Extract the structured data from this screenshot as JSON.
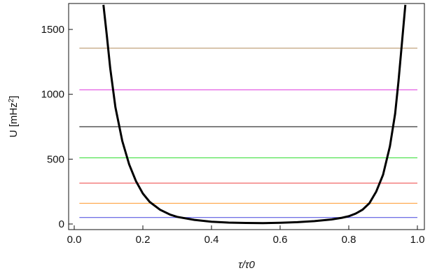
{
  "chart_data": {
    "type": "line",
    "xlabel": "τ/τ0",
    "ylabel_main": "U [mHz",
    "ylabel_sup": "2",
    "ylabel_tail": "]",
    "xlim": [
      0.0,
      1.0
    ],
    "ylim": [
      0,
      1700
    ],
    "xticks": [
      0.0,
      0.2,
      0.4,
      0.6,
      0.8,
      1.0
    ],
    "xtick_labels": [
      "0.0",
      "0.2",
      "0.4",
      "0.6",
      "0.8",
      "1.0"
    ],
    "yticks": [
      0,
      500,
      1000,
      1500
    ],
    "ytick_labels": [
      "0",
      "500",
      "1000",
      "1500"
    ],
    "grid": false,
    "hlines": [
      {
        "color": "#4444dd",
        "y": 50
      },
      {
        "color": "#ff9a2e",
        "y": 160
      },
      {
        "color": "#ee4444",
        "y": 315
      },
      {
        "color": "#33dd33",
        "y": 510
      },
      {
        "color": "#000000",
        "y": 750
      },
      {
        "color": "#dd33dd",
        "y": 1035
      },
      {
        "color": "#b08a5a",
        "y": 1355
      }
    ],
    "curve": {
      "color": "#000000",
      "points": [
        [
          0.085,
          1690
        ],
        [
          0.095,
          1450
        ],
        [
          0.105,
          1200
        ],
        [
          0.12,
          900
        ],
        [
          0.14,
          640
        ],
        [
          0.16,
          460
        ],
        [
          0.18,
          330
        ],
        [
          0.2,
          235
        ],
        [
          0.22,
          170
        ],
        [
          0.25,
          110
        ],
        [
          0.28,
          72
        ],
        [
          0.3,
          55
        ],
        [
          0.35,
          32
        ],
        [
          0.4,
          18
        ],
        [
          0.45,
          11
        ],
        [
          0.5,
          8
        ],
        [
          0.55,
          7
        ],
        [
          0.6,
          9
        ],
        [
          0.65,
          14
        ],
        [
          0.7,
          22
        ],
        [
          0.75,
          35
        ],
        [
          0.78,
          48
        ],
        [
          0.8,
          60
        ],
        [
          0.82,
          80
        ],
        [
          0.84,
          110
        ],
        [
          0.86,
          160
        ],
        [
          0.88,
          250
        ],
        [
          0.9,
          380
        ],
        [
          0.92,
          600
        ],
        [
          0.935,
          850
        ],
        [
          0.945,
          1100
        ],
        [
          0.955,
          1400
        ],
        [
          0.965,
          1690
        ]
      ]
    }
  }
}
